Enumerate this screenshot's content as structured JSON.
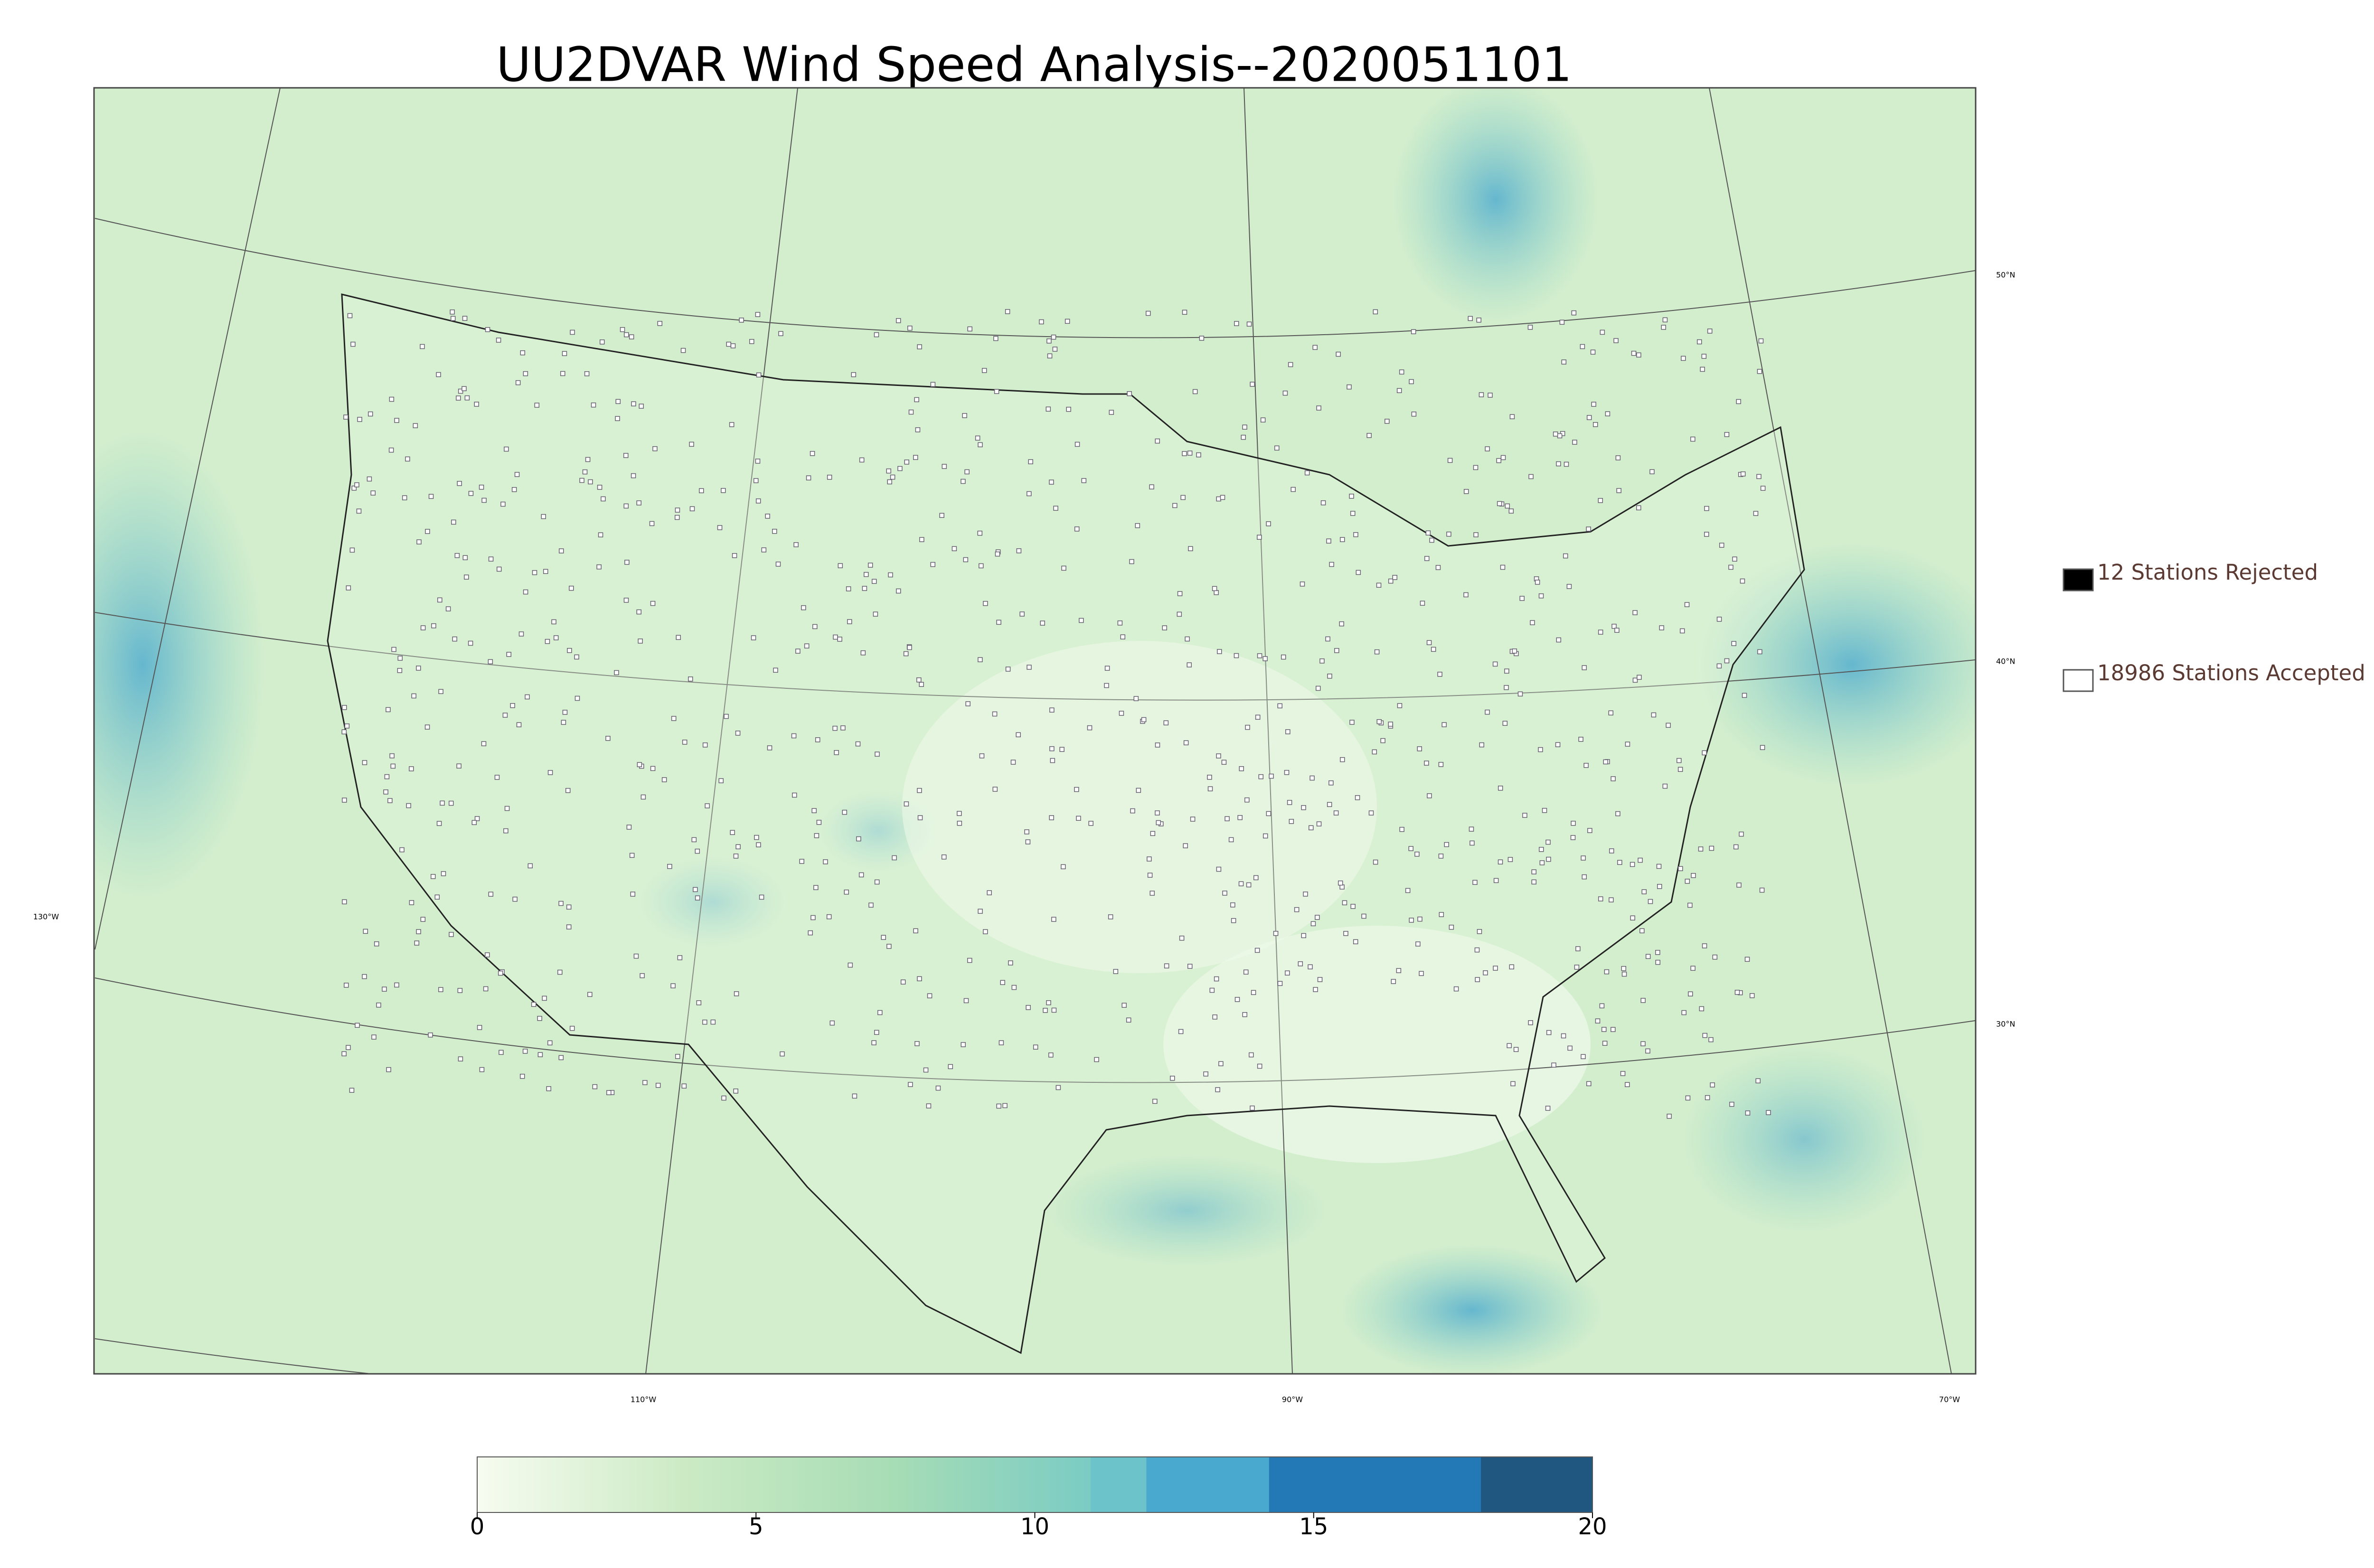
{
  "title": "UU2DVAR Wind Speed Analysis--2020051101",
  "legend": [
    {
      "label": "12 Stations Rejected",
      "color": "#000000"
    },
    {
      "label": "18986 Stations Accepted",
      "color": "#ffffff"
    }
  ],
  "graticule_labels": {
    "lat": [
      "50°N",
      "40°N",
      "30°N"
    ],
    "lon": [
      "130°W",
      "110°W",
      "90°W",
      "70°W"
    ]
  },
  "colorbar": {
    "lim": [
      0,
      20
    ],
    "ticks": [
      0,
      5,
      10,
      15,
      20
    ],
    "segments": [
      {
        "from": 0,
        "to": 11,
        "colors": [
          "#f7fcf0",
          "#ccebc5",
          "#a8ddb5",
          "#7bccc4"
        ]
      },
      {
        "from": 11,
        "to": 12,
        "colors": [
          "#6cc3c9"
        ]
      },
      {
        "from": 12,
        "to": 14.2,
        "colors": [
          "#4aa9cf"
        ]
      },
      {
        "from": 14.2,
        "to": 18,
        "colors": [
          "#2379b5"
        ]
      },
      {
        "from": 18,
        "to": 20,
        "colors": [
          "#1f5780"
        ]
      }
    ]
  }
}
